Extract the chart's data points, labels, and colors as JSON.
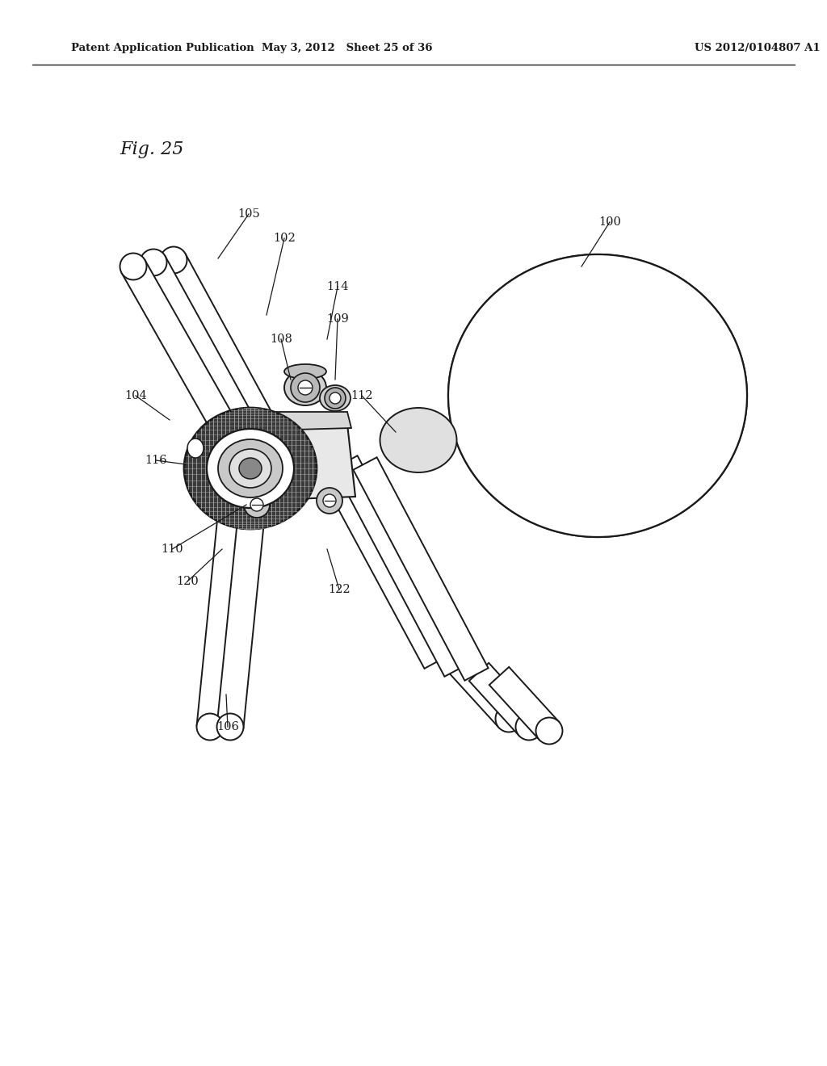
{
  "header_left": "Patent Application Publication",
  "header_mid": "May 3, 2012   Sheet 25 of 36",
  "header_right": "US 2012/0104807 A1",
  "fig_label": "Fig. 25",
  "bg_color": "#ffffff",
  "line_color": "#1a1a1a"
}
